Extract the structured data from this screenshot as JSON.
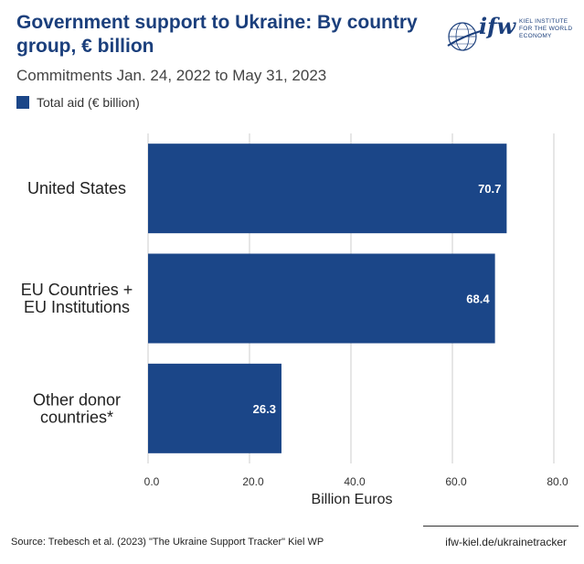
{
  "header": {
    "title": "Government support to Ukraine: By country group, € billion",
    "subtitle": "Commitments Jan. 24, 2022 to May 31, 2023"
  },
  "logo": {
    "mark": "ifw",
    "text": "KIEL INSTITUTE FOR THE WORLD ECONOMY"
  },
  "footer": {
    "source": "Source: Trebesch et al. (2023) \"The Ukraine Support Tracker\" Kiel WP",
    "url": "ifw-kiel.de/ukrainetracker"
  },
  "colors": {
    "bar": "#1b4688",
    "title": "#1b3f7c",
    "grid": "#cccccc"
  },
  "chart_data": {
    "type": "bar",
    "orientation": "horizontal",
    "categories": [
      "United States",
      "EU Countries + EU Institutions",
      "Other donor countries*"
    ],
    "category_lines": [
      [
        "United States"
      ],
      [
        "EU Countries +",
        "EU Institutions"
      ],
      [
        "Other donor",
        "countries*"
      ]
    ],
    "values": [
      70.7,
      68.4,
      26.3
    ],
    "value_labels": [
      "70.7",
      "68.4",
      "26.3"
    ],
    "series_name": "Total aid (€ billion)",
    "xlabel": "Billion Euros",
    "xlim": [
      0,
      80
    ],
    "ticks": [
      0,
      20,
      40,
      60,
      80
    ],
    "tick_labels": [
      "0.0",
      "20.0",
      "40.0",
      "60.0",
      "80.0"
    ],
    "grid": true
  }
}
